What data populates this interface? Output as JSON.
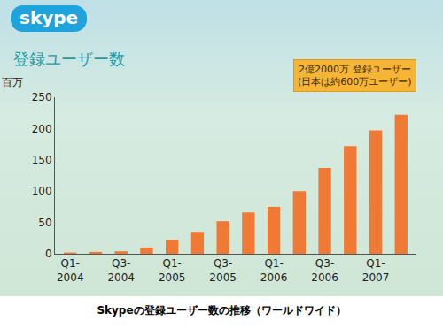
{
  "chart_data": {
    "type": "bar",
    "logo": "skype",
    "title": "登録ユーザー数",
    "y_label": "百万",
    "annotations": [
      "2億2000万 登録ユーザー",
      "(日本は約600万ユーザー)"
    ],
    "caption": "Skypeの登録ユーザー数の推移（ワールドワイド）",
    "categories": [
      "Q1-2004",
      null,
      "Q3-2004",
      null,
      "Q1-2005",
      null,
      "Q3-2005",
      null,
      "Q1-2006",
      null,
      "Q3-2006",
      null,
      "Q1-2007",
      null
    ],
    "values": [
      2,
      3,
      4,
      10,
      22,
      35,
      52,
      66,
      75,
      100,
      137,
      172,
      197,
      222
    ],
    "color": "#f07a35",
    "ylim": [
      0,
      250
    ],
    "yticks": [
      0,
      50,
      100,
      150,
      200,
      250
    ],
    "grid": false
  }
}
